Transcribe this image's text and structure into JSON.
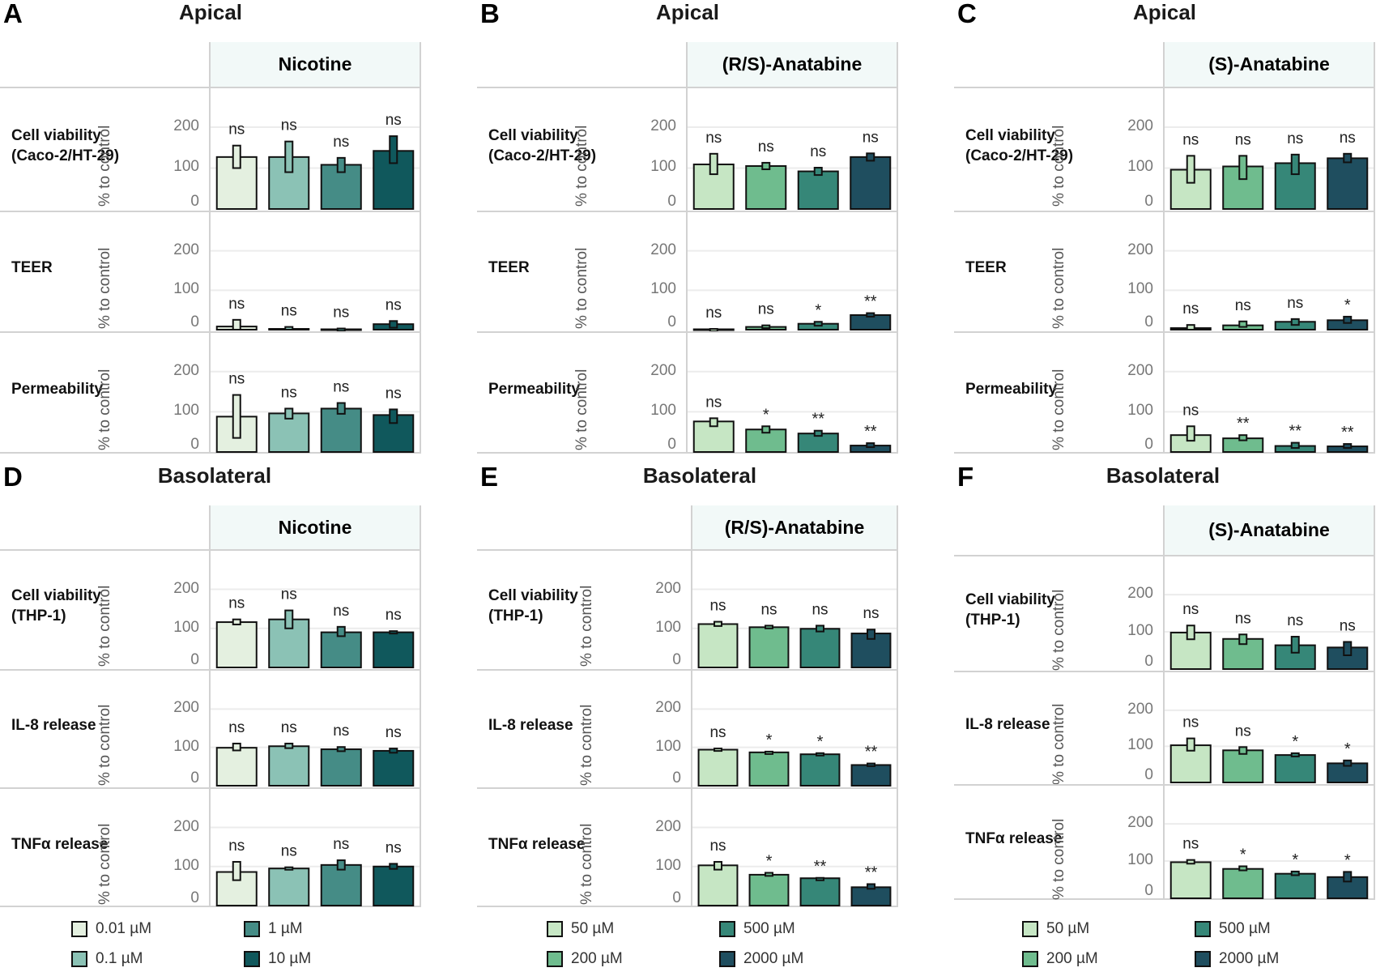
{
  "chart_data": {
    "type": "bar",
    "ylabel": "% to control",
    "yticks": [
      0,
      100,
      200
    ],
    "ylim": [
      0,
      280
    ],
    "grid": true,
    "panels": [
      {
        "letter": "A",
        "title": "Apical",
        "facet": "Nicotine",
        "palette": "nicotine",
        "rows": [
          {
            "label": "Cell viability\n(Caco-2/HT-29)",
            "values": [
              127,
              127,
              108,
              142
            ],
            "err_low": [
              100,
              90,
              90,
              112
            ],
            "err_high": [
              155,
              165,
              125,
              178
            ],
            "sig": [
              "ns",
              "ns",
              "ns",
              "ns"
            ]
          },
          {
            "label": "TEER",
            "values": [
              8,
              2,
              1,
              14
            ],
            "err_low": [
              0,
              0,
              0,
              5
            ],
            "err_high": [
              25,
              7,
              3,
              22
            ],
            "sig": [
              "ns",
              "ns",
              "ns",
              "ns"
            ]
          },
          {
            "label": "Permeability",
            "values": [
              88,
              96,
              108,
              92
            ],
            "err_low": [
              35,
              83,
              95,
              72
            ],
            "err_high": [
              142,
              108,
              122,
              106
            ],
            "sig": [
              "ns",
              "ns",
              "ns",
              "ns"
            ]
          }
        ]
      },
      {
        "letter": "B",
        "title": "Apical",
        "facet": "(R/S)-Anatabine",
        "palette": "anatabine",
        "rows": [
          {
            "label": "Cell viability\n(Caco-2/HT-29)",
            "values": [
              109,
              105,
              92,
              127
            ],
            "err_low": [
              85,
              97,
              83,
              118
            ],
            "err_high": [
              135,
              113,
              101,
              136
            ],
            "sig": [
              "ns",
              "ns",
              "ns",
              "ns"
            ]
          },
          {
            "label": "TEER",
            "values": [
              1,
              7,
              15,
              37
            ],
            "err_low": [
              0,
              4,
              10,
              33
            ],
            "err_high": [
              2,
              11,
              20,
              42
            ],
            "sig": [
              "ns",
              "ns",
              "*",
              "**"
            ]
          },
          {
            "label": "Permeability",
            "values": [
              76,
              56,
              46,
              16
            ],
            "err_low": [
              64,
              48,
              40,
              12
            ],
            "err_high": [
              84,
              64,
              53,
              22
            ],
            "sig": [
              "ns",
              "*",
              "**",
              "**"
            ]
          }
        ]
      },
      {
        "letter": "C",
        "title": "Apical",
        "facet": "(S)-Anatabine",
        "palette": "anatabine",
        "rows": [
          {
            "label": "Cell viability\n(Caco-2/HT-29)",
            "values": [
              96,
              104,
              112,
              124
            ],
            "err_low": [
              64,
              73,
              85,
              114
            ],
            "err_high": [
              130,
              130,
              133,
              135
            ],
            "sig": [
              "ns",
              "ns",
              "ns",
              "ns"
            ]
          },
          {
            "label": "TEER",
            "values": [
              4,
              11,
              20,
              24
            ],
            "err_low": [
              0,
              7,
              12,
              17
            ],
            "err_high": [
              12,
              21,
              27,
              33
            ],
            "sig": [
              "ns",
              "ns",
              "ns",
              "*"
            ]
          },
          {
            "label": "Permeability",
            "values": [
              42,
              34,
              15,
              14
            ],
            "err_low": [
              28,
              29,
              10,
              10
            ],
            "err_high": [
              64,
              42,
              23,
              20
            ],
            "sig": [
              "ns",
              "**",
              "**",
              "**"
            ]
          }
        ]
      },
      {
        "letter": "D",
        "title": "Basolateral",
        "facet": "Nicotine",
        "palette": "nicotine",
        "rows": [
          {
            "label": "Cell viability\n(THP-1)",
            "values": [
              116,
              123,
              90,
              90
            ],
            "err_low": [
              110,
              100,
              80,
              87
            ],
            "err_high": [
              123,
              146,
              104,
              93
            ],
            "sig": [
              "ns",
              "ns",
              "ns",
              "ns"
            ]
          },
          {
            "label": "IL-8 release",
            "values": [
              99,
              103,
              95,
              91
            ],
            "err_low": [
              92,
              98,
              90,
              86
            ],
            "err_high": [
              110,
              110,
              101,
              97
            ],
            "sig": [
              "ns",
              "ns",
              "ns",
              "ns"
            ]
          },
          {
            "label": "TNFα release",
            "values": [
              86,
              95,
              104,
              100
            ],
            "err_low": [
              65,
              92,
              92,
              94
            ],
            "err_high": [
              112,
              98,
              116,
              107
            ],
            "sig": [
              "ns",
              "ns",
              "ns",
              "ns"
            ]
          }
        ]
      },
      {
        "letter": "E",
        "title": "Basolateral",
        "facet": "(R/S)-Anatabine",
        "palette": "anatabine",
        "rows": [
          {
            "label": "Cell viability\n(THP-1)",
            "values": [
              111,
              103,
              99,
              87
            ],
            "err_low": [
              106,
              100,
              92,
              73
            ],
            "err_high": [
              117,
              107,
              107,
              97
            ],
            "sig": [
              "ns",
              "ns",
              "ns",
              "ns"
            ]
          },
          {
            "label": "IL-8 release",
            "values": [
              94,
              87,
              82,
              54
            ],
            "err_low": [
              91,
              86,
              79,
              51
            ],
            "err_high": [
              97,
              89,
              85,
              58
            ],
            "sig": [
              "ns",
              "*",
              "*",
              "**"
            ]
          },
          {
            "label": "TNFα release",
            "values": [
              103,
              79,
              70,
              47
            ],
            "err_low": [
              92,
              76,
              68,
              43
            ],
            "err_high": [
              112,
              84,
              71,
              55
            ],
            "sig": [
              "ns",
              "*",
              "**",
              "**"
            ]
          }
        ]
      },
      {
        "letter": "F",
        "title": "Basolateral",
        "facet": "(S)-Anatabine",
        "palette": "anatabine",
        "rows": [
          {
            "label": "Cell viability\n(THP-1)",
            "values": [
              98,
              81,
              64,
              58
            ],
            "err_low": [
              80,
              67,
              44,
              37
            ],
            "err_high": [
              117,
              93,
              87,
              73
            ],
            "sig": [
              "ns",
              "ns",
              "ns",
              "ns"
            ]
          },
          {
            "label": "IL-8 release",
            "values": [
              103,
              89,
              76,
              53
            ],
            "err_low": [
              88,
              79,
              72,
              46
            ],
            "err_high": [
              122,
              98,
              81,
              61
            ],
            "sig": [
              "ns",
              "ns",
              "*",
              "*"
            ]
          },
          {
            "label": "TNFα release",
            "values": [
              97,
              79,
              66,
              57
            ],
            "err_low": [
              93,
              75,
              62,
              45
            ],
            "err_high": [
              103,
              86,
              72,
              71
            ],
            "sig": [
              "ns",
              "*",
              "*",
              "*"
            ]
          }
        ]
      }
    ],
    "legends": {
      "nicotine": [
        {
          "label": "0.01 µM",
          "color": "#e4f0e0"
        },
        {
          "label": "0.1 µM",
          "color": "#8bc2b5"
        },
        {
          "label": "1 µM",
          "color": "#458c86"
        },
        {
          "label": "10 µM",
          "color": "#10585c"
        }
      ],
      "anatabine": [
        {
          "label": "50 µM",
          "color": "#c6e6c4"
        },
        {
          "label": "200 µM",
          "color": "#6fbc8e"
        },
        {
          "label": "500 µM",
          "color": "#368778"
        },
        {
          "label": "2000 µM",
          "color": "#1f4e5f"
        }
      ]
    }
  }
}
